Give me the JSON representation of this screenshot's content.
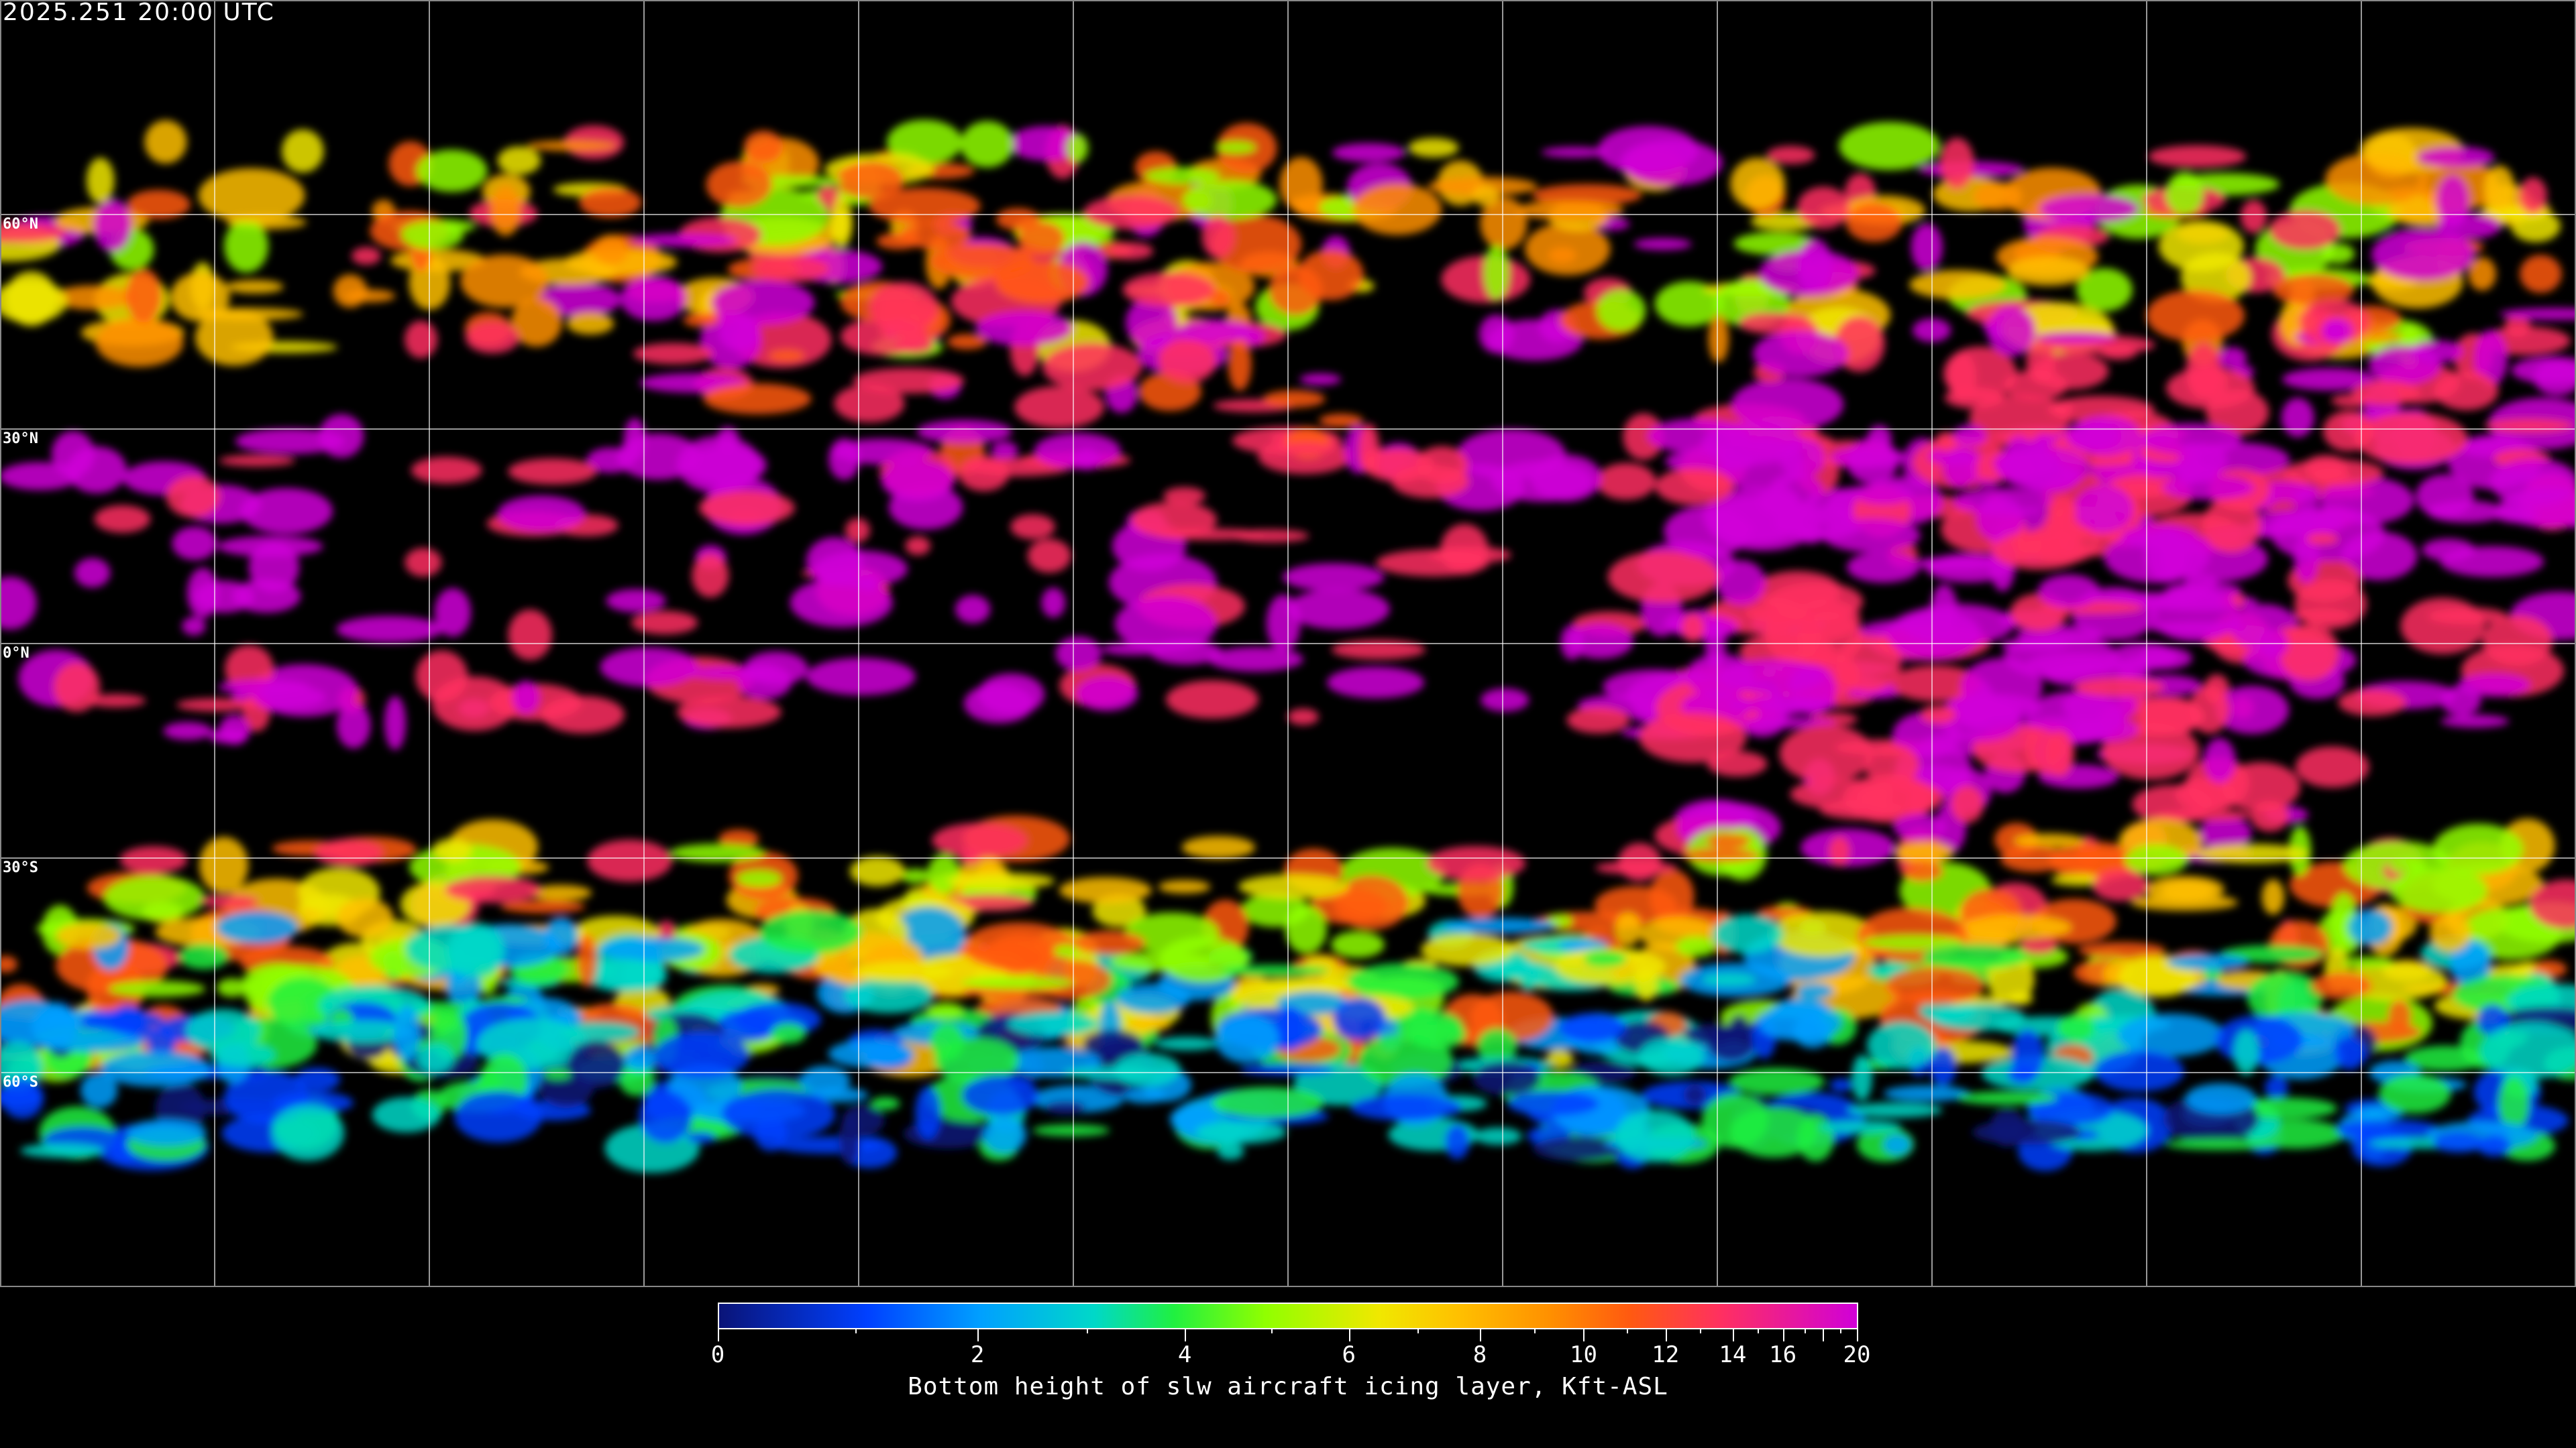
{
  "header": {
    "timestamp": "2025.251 20:00 UTC"
  },
  "map": {
    "projection": "equirectangular",
    "graticule_spacing_deg": 30,
    "lat_labels": [
      {
        "lat": 60,
        "text": "60°N"
      },
      {
        "lat": 30,
        "text": "30°N"
      },
      {
        "lat": 0,
        "text": "0°N"
      },
      {
        "lat": -30,
        "text": "30°S"
      },
      {
        "lat": -60,
        "text": "60°S"
      }
    ],
    "grid_color": "#ffffff",
    "coastline_color": "#ffffff",
    "background_color": "#000000"
  },
  "colorbar": {
    "title": "Bottom height of slw aircraft icing layer, Kft-ASL",
    "range": [
      0,
      20
    ],
    "major_ticks": [
      "0",
      "2",
      "4",
      "6",
      "8",
      "10",
      "12",
      "14",
      "16",
      "20"
    ],
    "minor_ticks": [
      1,
      3,
      5,
      7,
      9,
      11,
      13,
      15,
      17,
      18,
      19
    ],
    "colors": [
      "#0a1478",
      "#0040ff",
      "#00a0ff",
      "#00d8c8",
      "#20f040",
      "#90ff00",
      "#f0e800",
      "#ffc000",
      "#ff9000",
      "#ff5a10",
      "#ff3060",
      "#d000d8"
    ]
  }
}
